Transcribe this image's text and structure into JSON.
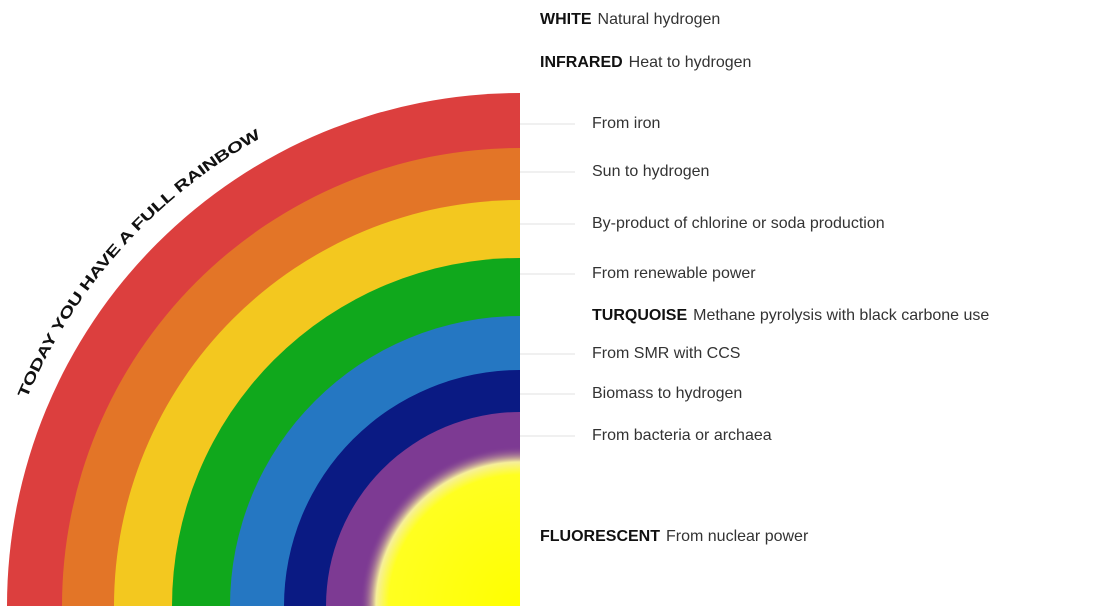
{
  "title": "TODAY YOU HAVE A FULL RAINBOW",
  "entries": [
    {
      "name": "WHITE",
      "text": "Natural hydrogen"
    },
    {
      "name": "INFRARED",
      "text": "Heat to hydrogen"
    },
    {
      "text": "From iron"
    },
    {
      "text": "Sun to hydrogen"
    },
    {
      "text": "By-product of chlorine or soda production"
    },
    {
      "text": "From renewable power"
    },
    {
      "name": "TURQUOISE",
      "text": "Methane pyrolysis with black carbone use"
    },
    {
      "text": "From SMR with CCS"
    },
    {
      "text": "Biomass to hydrogen"
    },
    {
      "text": "From bacteria or archaea"
    },
    {
      "name": "FLUORESCENT",
      "text": "From nuclear power"
    }
  ]
}
